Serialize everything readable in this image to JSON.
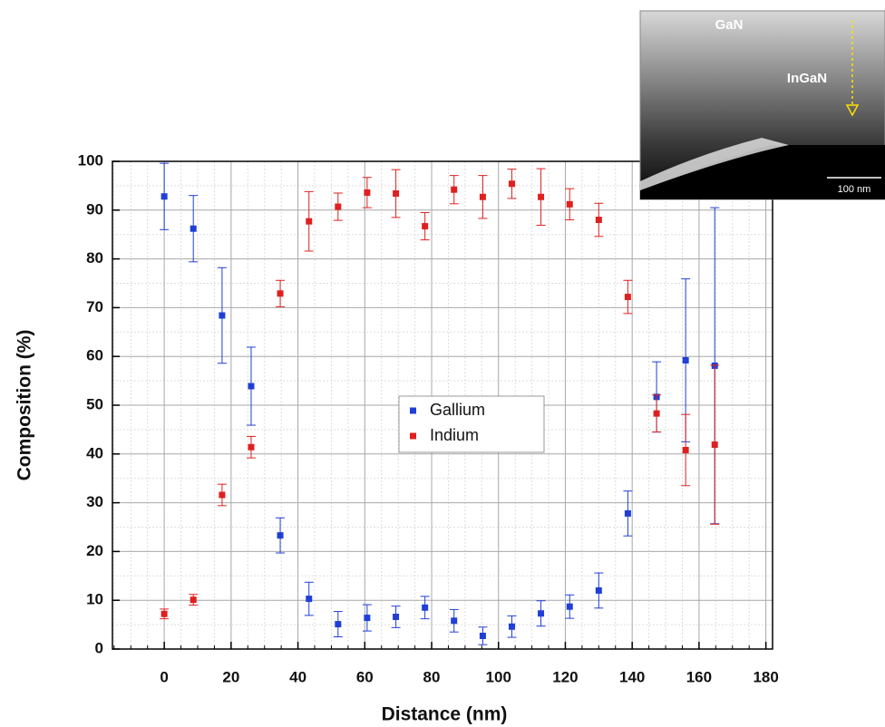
{
  "chart_data": {
    "type": "scatter",
    "x_label": "Distance (nm)",
    "y_label": "Composition (%)",
    "x": [
      0,
      8.7,
      17.3,
      26,
      34.7,
      43.3,
      52,
      60.7,
      69.3,
      78,
      86.7,
      95.3,
      104,
      112.7,
      121.3,
      130,
      138.7,
      147.3,
      156,
      164.7
    ],
    "series": [
      {
        "name": "Gallium",
        "color": "#1f3fd6",
        "values": [
          92.8,
          86.2,
          68.4,
          53.9,
          23.3,
          10.3,
          5.1,
          6.4,
          6.6,
          8.5,
          5.8,
          2.7,
          4.6,
          7.3,
          8.7,
          12.0,
          27.8,
          51.7,
          59.2,
          58.1
        ],
        "errors": [
          6.8,
          6.8,
          9.8,
          8,
          3.6,
          3.4,
          2.6,
          2.7,
          2.2,
          2.3,
          2.3,
          1.8,
          2.2,
          2.6,
          2.4,
          3.6,
          4.6,
          7.2,
          16.7,
          32.4
        ]
      },
      {
        "name": "Indium",
        "color": "#e02020",
        "values": [
          7.2,
          10.1,
          31.6,
          41.4,
          72.9,
          87.7,
          90.7,
          93.6,
          93.4,
          86.7,
          94.2,
          92.7,
          95.4,
          92.7,
          91.2,
          88.0,
          72.2,
          48.3,
          40.8,
          41.9
        ],
        "errors": [
          1.0,
          1.1,
          2.2,
          2.2,
          2.7,
          6.1,
          2.8,
          3.1,
          4.9,
          2.8,
          2.9,
          4.4,
          3.0,
          5.8,
          3.2,
          3.4,
          3.4,
          3.8,
          7.3,
          16.3
        ]
      }
    ],
    "xlim": [
      -15.5,
      182
    ],
    "ylim": [
      0,
      100
    ],
    "xticks": [
      0,
      20,
      40,
      60,
      80,
      100,
      120,
      140,
      160,
      180
    ],
    "yticks": [
      0,
      10,
      20,
      30,
      40,
      50,
      60,
      70,
      80,
      90,
      100
    ],
    "grid": true,
    "minor_grid": true,
    "legend": "center"
  },
  "inset": {
    "labels": [
      "GaN",
      "InGaN"
    ],
    "scale_bar": "100 nm"
  }
}
